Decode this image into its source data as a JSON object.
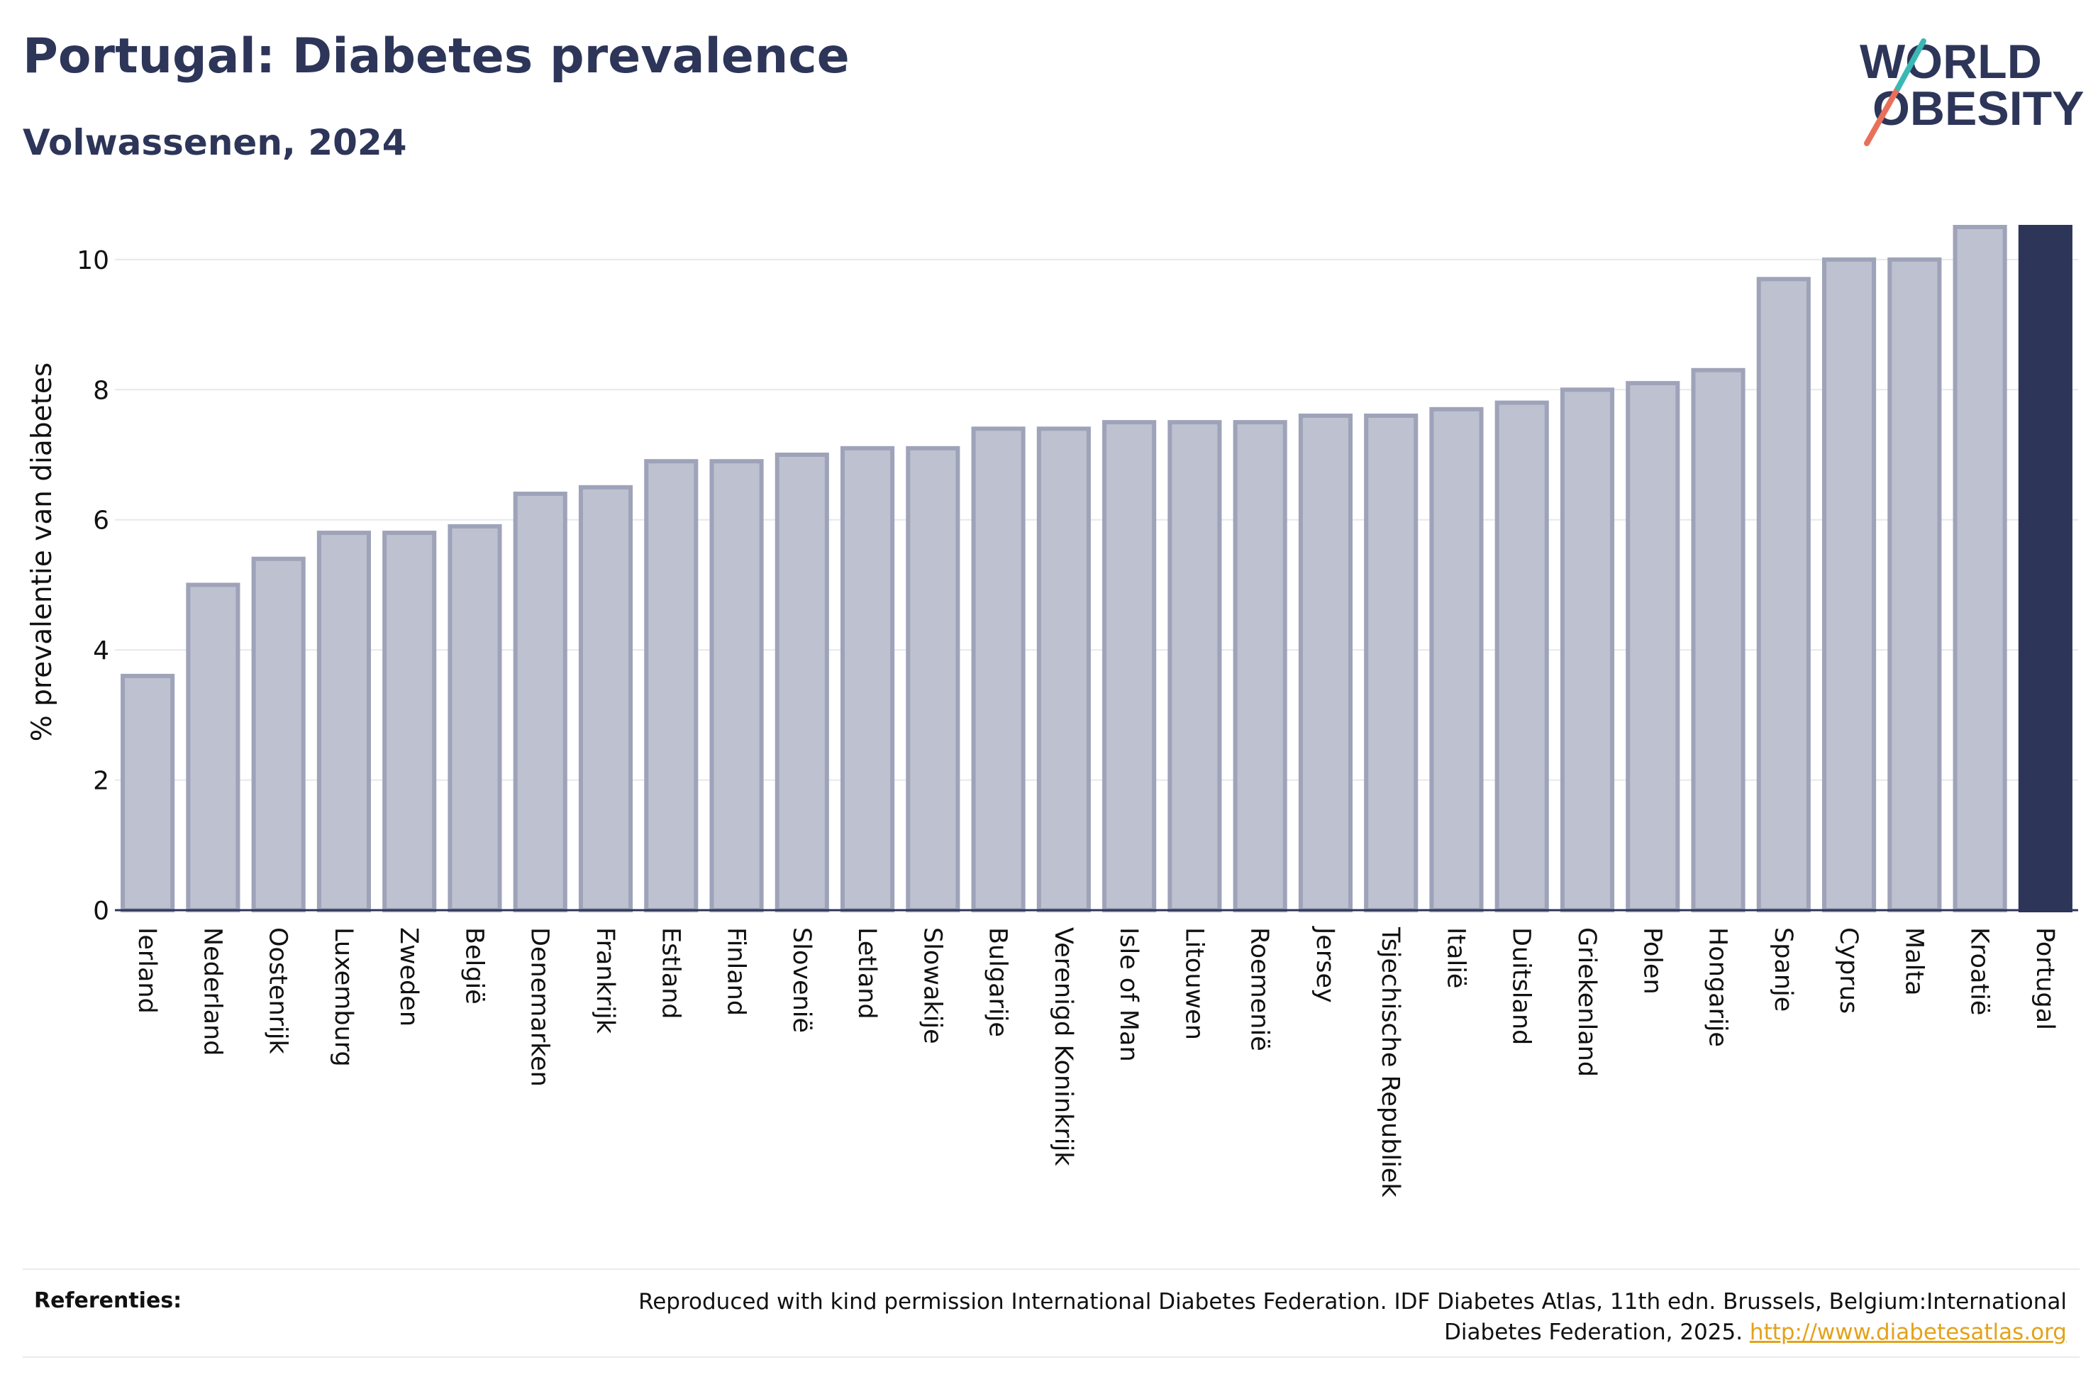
{
  "header": {
    "title": "Portugal: Diabetes prevalence",
    "subtitle": "Volwassenen, 2024"
  },
  "logo": {
    "line1": "WORLD",
    "line2": "OBESITY",
    "colors": {
      "text": "#2d3559",
      "slash_teal": "#3bb8b3",
      "slash_coral": "#e8705a"
    }
  },
  "colors": {
    "bar_fill": "#bec1cf",
    "bar_stroke": "#9ea3b9",
    "highlight": "#2d3559",
    "grid": "#e6e8ee",
    "axis": "#2d3559"
  },
  "chart_data": {
    "type": "bar",
    "title": "Portugal: Diabetes prevalence",
    "subtitle": "Volwassenen, 2024",
    "xlabel": "",
    "ylabel": "% prevalentie van diabetes",
    "ylim": [
      0,
      10.5
    ],
    "yticks": [
      0,
      2,
      4,
      6,
      8,
      10
    ],
    "grid": true,
    "highlight_category": "Portugal",
    "categories": [
      "Ierland",
      "Nederland",
      "Oostenrijk",
      "Luxemburg",
      "Zweden",
      "België",
      "Denemarken",
      "Frankrijk",
      "Estland",
      "Finland",
      "Slovenië",
      "Letland",
      "Slowakije",
      "Bulgarije",
      "Verenigd Koninkrijk",
      "Isle of Man",
      "Litouwen",
      "Roemenië",
      "Jersey",
      "Tsjechische Republiek",
      "Italië",
      "Duitsland",
      "Griekenland",
      "Polen",
      "Hongarije",
      "Spanje",
      "Cyprus",
      "Malta",
      "Kroatië",
      "Portugal"
    ],
    "values": [
      3.6,
      5.0,
      5.4,
      5.8,
      5.8,
      5.9,
      6.4,
      6.5,
      6.9,
      6.9,
      7.0,
      7.1,
      7.1,
      7.4,
      7.4,
      7.5,
      7.5,
      7.5,
      7.6,
      7.6,
      7.7,
      7.8,
      8.0,
      8.1,
      8.3,
      9.7,
      10.0,
      10.0,
      10.5,
      10.5
    ]
  },
  "footer": {
    "references_label": "Referenties:",
    "reference_text_line1": "Reproduced with kind permission International Diabetes Federation. IDF Diabetes Atlas, 11th edn. Brussels, Belgium:International",
    "reference_text_line2": "Diabetes Federation, 2025.",
    "reference_link": "http://www.diabetesatlas.org"
  }
}
